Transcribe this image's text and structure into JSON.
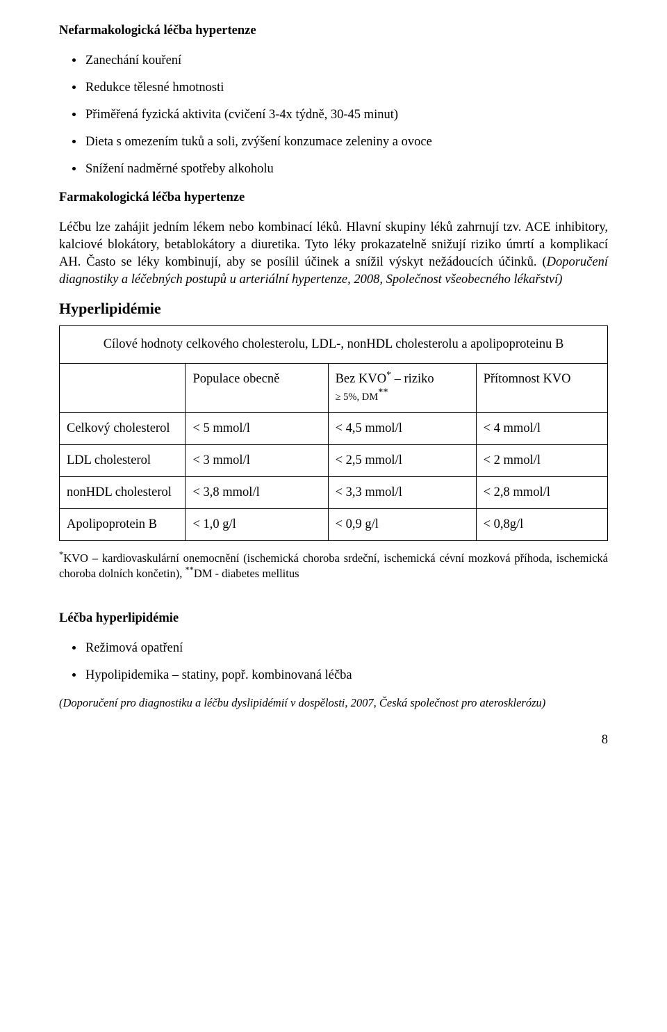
{
  "section1": {
    "heading": "Nefarmakologická léčba hypertenze",
    "bullets": [
      "Zanechání kouření",
      "Redukce tělesné hmotnosti",
      "Přiměřená fyzická aktivita (cvičení 3-4x týdně, 30-45 minut)",
      "Dieta s omezením tuků a soli, zvýšení konzumace zeleniny a ovoce",
      "Snížení nadměrné spotřeby alkoholu"
    ]
  },
  "section2": {
    "heading": "Farmakologická léčba hypertenze",
    "body_lead": "Léčbu lze zahájit jedním lékem nebo kombinací léků. Hlavní skupiny léků zahrnují tzv. ACE inhibitory, kalciové blokátory, betablokátory a diuretika. Tyto léky prokazatelně snižují riziko úmrtí a komplikací AH. Často se léky kombinují, aby se posílil účinek a snížil výskyt nežádoucích účinků. (",
    "body_ital": "Doporučení diagnostiky a léčebných postupů u arteriální hypertenze, 2008, Společnost všeobecného lékařství)"
  },
  "hyper_heading": "Hyperlipidémie",
  "table": {
    "caption": "Cílové hodnoty celkového cholesterolu, LDL-, nonHDL cholesterolu a apolipoproteinu B",
    "header": {
      "c0": "",
      "c1": "Populace obecně",
      "c2_main": "Bez KVO",
      "c2_sup": "*",
      "c2_tail": " – riziko",
      "c2_sub": "≥ 5%, DM",
      "c2_sub_sup": "**",
      "c3": "Přítomnost KVO"
    },
    "rows": [
      {
        "c0": "Celkový cholesterol",
        "c1": "< 5 mmol/l",
        "c2": "< 4,5 mmol/l",
        "c3": "< 4 mmol/l"
      },
      {
        "c0": "LDL cholesterol",
        "c1": "< 3 mmol/l",
        "c2": "< 2,5 mmol/l",
        "c3": "< 2 mmol/l"
      },
      {
        "c0": "nonHDL cholesterol",
        "c1": "< 3,8 mmol/l",
        "c2": "< 3,3 mmol/l",
        "c3": "< 2,8 mmol/l"
      },
      {
        "c0": "Apolipoprotein B",
        "c1": "< 1,0 g/l",
        "c2": "< 0,9 g/l",
        "c3": "< 0,8g/l"
      }
    ]
  },
  "footnote": {
    "sup1": "*",
    "text1": "KVO – kardiovaskulární onemocnění (ischemická choroba srdeční, ischemická cévní mozková příhoda, ischemická choroba dolních končetin), ",
    "sup2": "**",
    "text2": "DM  - diabetes mellitus"
  },
  "section3": {
    "heading": "Léčba hyperlipidémie",
    "bullets": [
      "Režimová opatření",
      "Hypolipidemika – statiny, popř. kombinovaná léčba"
    ],
    "closing": "(Doporučení pro diagnostiku a léčbu dyslipidémií v dospělosti, 2007, Česká společnost pro aterosklerózu)"
  },
  "page_number": "8"
}
